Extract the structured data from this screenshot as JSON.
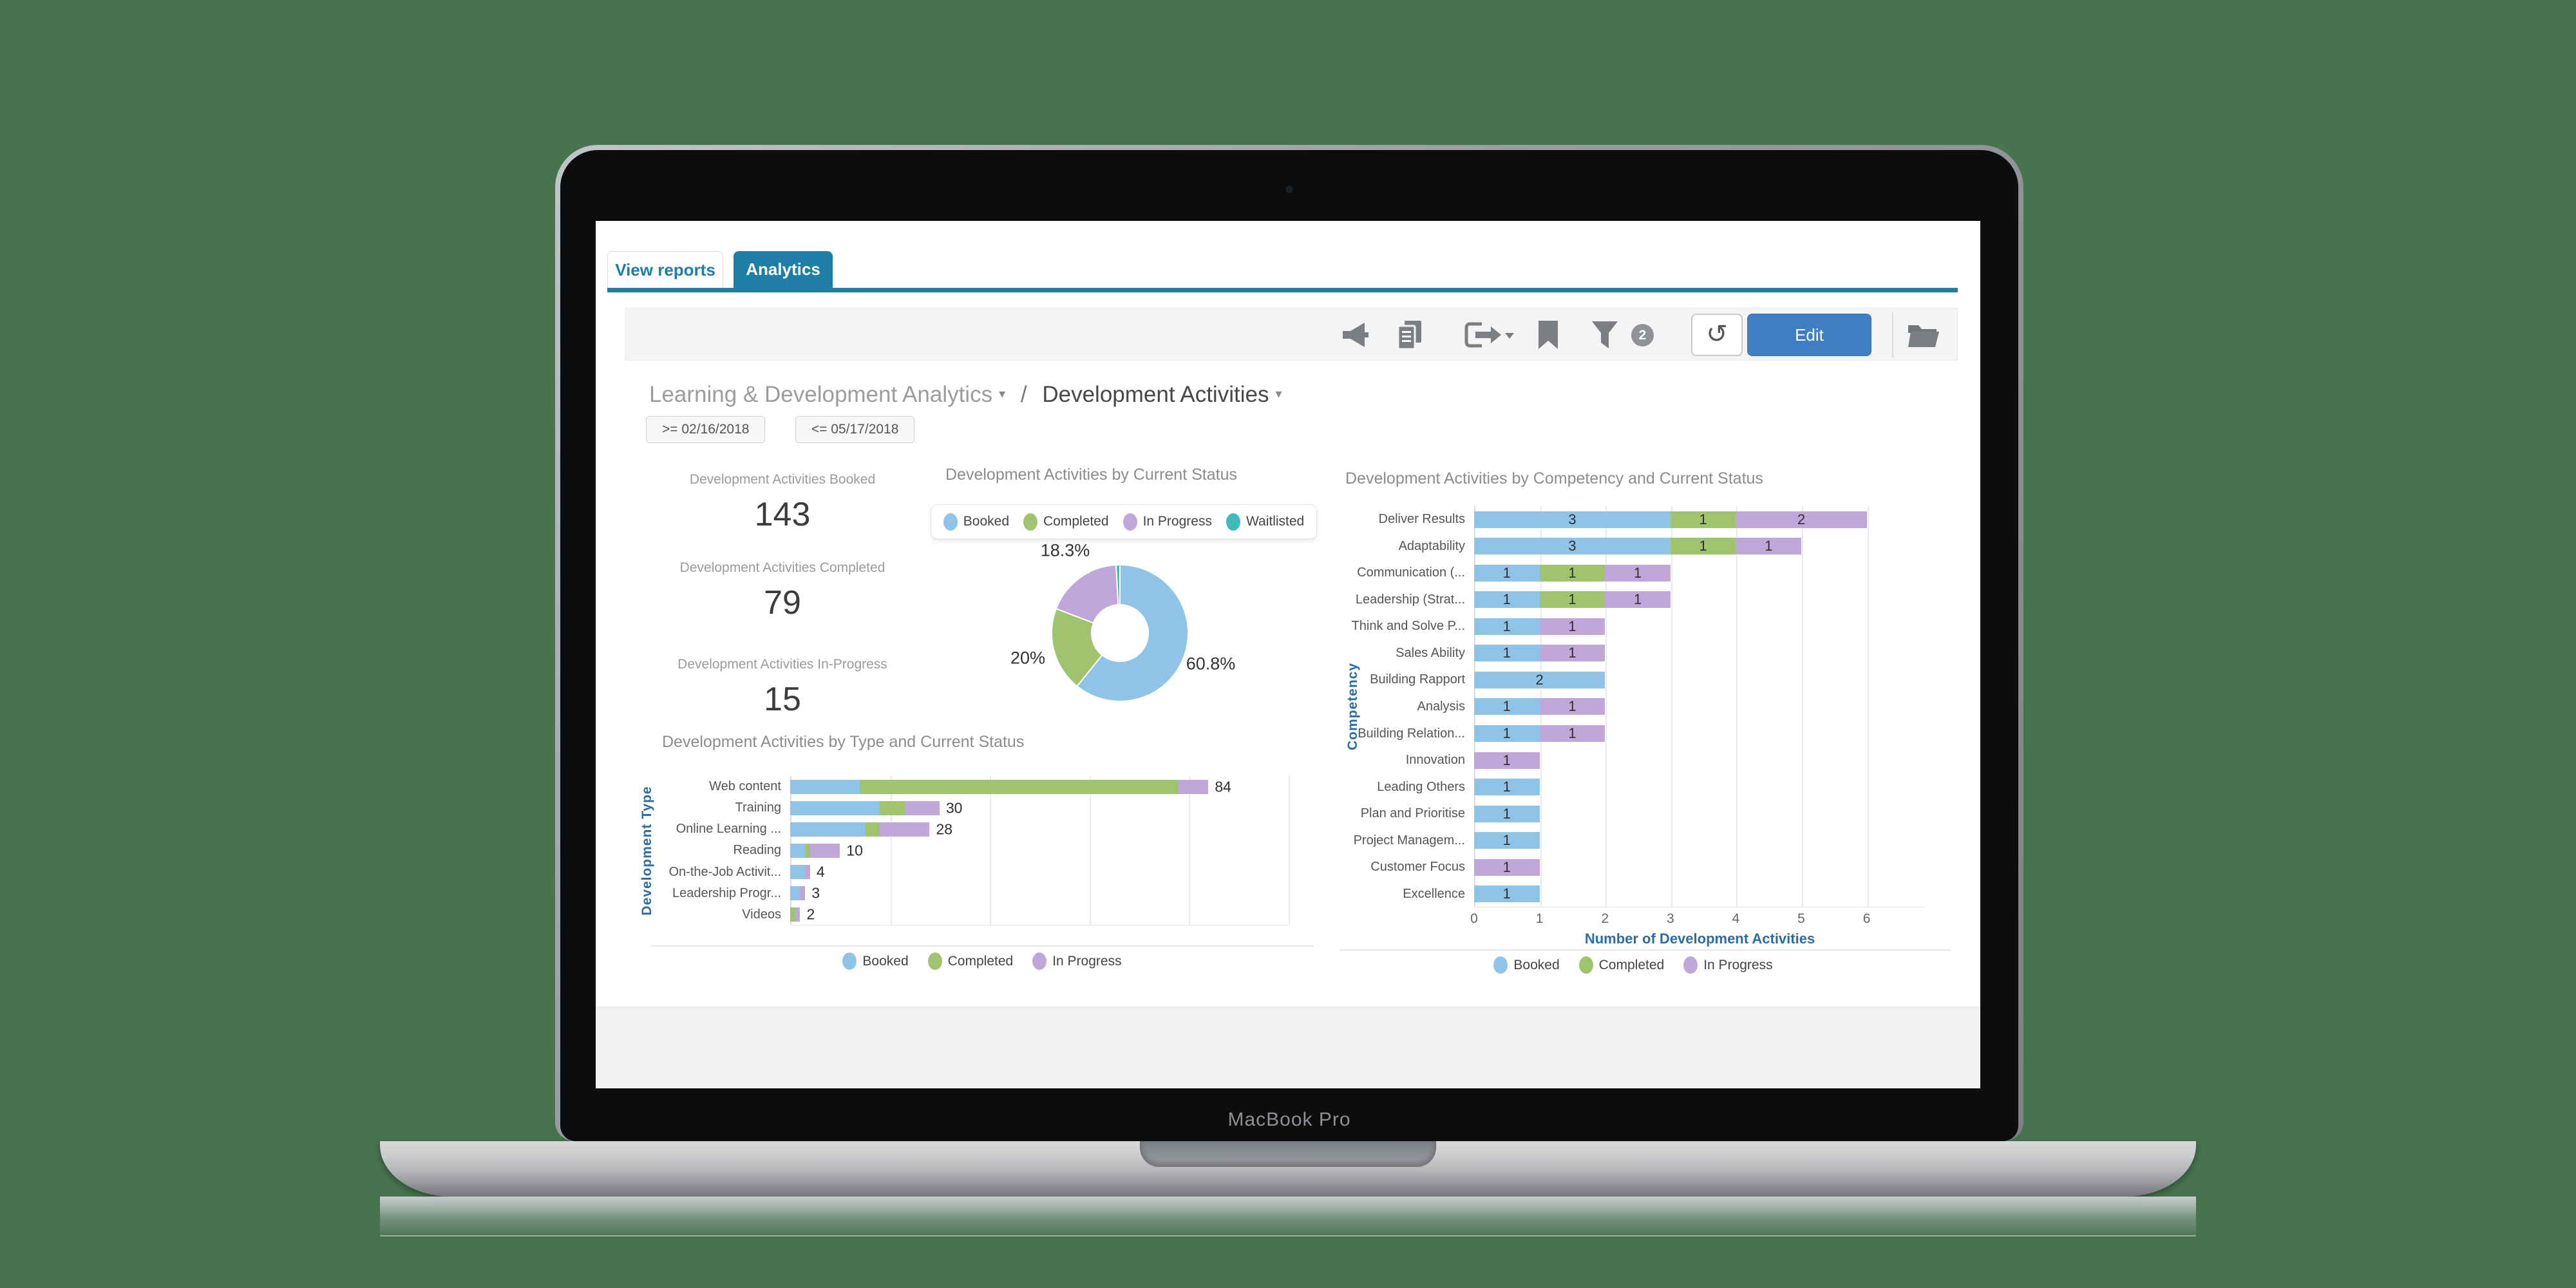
{
  "device": {
    "label": "MacBook Pro"
  },
  "tabs": {
    "view_reports": "View reports",
    "analytics": "Analytics"
  },
  "toolbar": {
    "filter_badge": "2",
    "refresh_glyph": "↺",
    "edit_label": "Edit",
    "icons": [
      "megaphone-icon",
      "report-copy-icon",
      "export-icon",
      "bookmark-icon",
      "filter-icon",
      "folder-icon"
    ]
  },
  "breadcrumb": {
    "parent": "Learning & Development Analytics",
    "separator": "/",
    "current": "Development Activities",
    "caret": "▾"
  },
  "date_filters": {
    "from": ">= 02/16/2018",
    "to": "<= 05/17/2018"
  },
  "kpis": [
    {
      "label": "Development Activities Booked",
      "value": "143"
    },
    {
      "label": "Development Activities Completed",
      "value": "79"
    },
    {
      "label": "Development Activities In-Progress",
      "value": "15"
    }
  ],
  "colors": {
    "booked": "#8fc4e8",
    "completed": "#9fc36e",
    "in_progress": "#bfa7da",
    "waitlisted": "#3fbcba",
    "tab_active": "#1f7ea6",
    "edit_button": "#3d7fc2",
    "axis_label": "#2b6ca3"
  },
  "chart_data": [
    {
      "type": "pie",
      "donut": true,
      "title": "Development Activities by Current Status",
      "slices": [
        {
          "label": "Booked",
          "value_pct": 60.8,
          "display": "60.8%",
          "color_key": "booked"
        },
        {
          "label": "Completed",
          "value_pct": 20.0,
          "display": "20%",
          "color_key": "completed"
        },
        {
          "label": "In Progress",
          "value_pct": 18.3,
          "display": "18.3%",
          "color_key": "in_progress"
        },
        {
          "label": "Waitlisted",
          "value_pct": 0.9,
          "display": "",
          "color_key": "waitlisted"
        }
      ],
      "legend": [
        {
          "label": "Booked",
          "color_key": "booked"
        },
        {
          "label": "Completed",
          "color_key": "completed"
        },
        {
          "label": "In Progress",
          "color_key": "in_progress"
        },
        {
          "label": "Waitlisted",
          "color_key": "waitlisted"
        }
      ]
    },
    {
      "type": "bar",
      "orientation": "horizontal",
      "title": "Development Activities by Type and Current Status",
      "ylabel": "Development Type",
      "categories": [
        "Web content",
        "Training",
        "Online Learning ...",
        "Reading",
        "On-the-Job Activit...",
        "Leadership Progr...",
        "Videos"
      ],
      "series": [
        {
          "name": "Booked",
          "color_key": "booked",
          "values": [
            14,
            18,
            15,
            3,
            3,
            2,
            0
          ]
        },
        {
          "name": "Completed",
          "color_key": "completed",
          "values": [
            64,
            5,
            3,
            1,
            0,
            0,
            1
          ]
        },
        {
          "name": "In Progress",
          "color_key": "in_progress",
          "values": [
            6,
            7,
            10,
            6,
            1,
            1,
            1
          ]
        }
      ],
      "totals": [
        84,
        30,
        28,
        10,
        4,
        3,
        2
      ],
      "xlim": [
        0,
        100
      ],
      "grid_step": 20,
      "show_segment_values": false,
      "legend": [
        {
          "label": "Booked",
          "color_key": "booked"
        },
        {
          "label": "Completed",
          "color_key": "completed"
        },
        {
          "label": "In Progress",
          "color_key": "in_progress"
        }
      ]
    },
    {
      "type": "bar",
      "orientation": "horizontal",
      "title": "Development Activities by Competency and Current Status",
      "xlabel": "Number of Development Activities",
      "ylabel": "Competency",
      "categories": [
        "Deliver Results",
        "Adaptability",
        "Communication (...",
        "Leadership (Strat...",
        "Think and Solve P...",
        "Sales Ability",
        "Building Rapport",
        "Analysis",
        "Building Relation...",
        "Innovation",
        "Leading Others",
        "Plan and Prioritise",
        "Project Managem...",
        "Customer Focus",
        "Excellence"
      ],
      "series": [
        {
          "name": "Booked",
          "color_key": "booked",
          "values": [
            3,
            3,
            1,
            1,
            1,
            1,
            2,
            1,
            1,
            0,
            1,
            1,
            1,
            0,
            1
          ]
        },
        {
          "name": "Completed",
          "color_key": "completed",
          "values": [
            1,
            1,
            1,
            1,
            0,
            0,
            0,
            0,
            0,
            0,
            0,
            0,
            0,
            0,
            0
          ]
        },
        {
          "name": "In Progress",
          "color_key": "in_progress",
          "values": [
            2,
            1,
            1,
            1,
            1,
            1,
            0,
            1,
            1,
            1,
            0,
            0,
            0,
            1,
            0
          ]
        }
      ],
      "xlim": [
        0,
        6.9
      ],
      "grid_step": 1,
      "ticks": [
        0,
        1,
        2,
        3,
        4,
        5,
        6
      ],
      "show_segment_values": true,
      "legend": [
        {
          "label": "Booked",
          "color_key": "booked"
        },
        {
          "label": "Completed",
          "color_key": "completed"
        },
        {
          "label": "In Progress",
          "color_key": "in_progress"
        }
      ]
    }
  ]
}
